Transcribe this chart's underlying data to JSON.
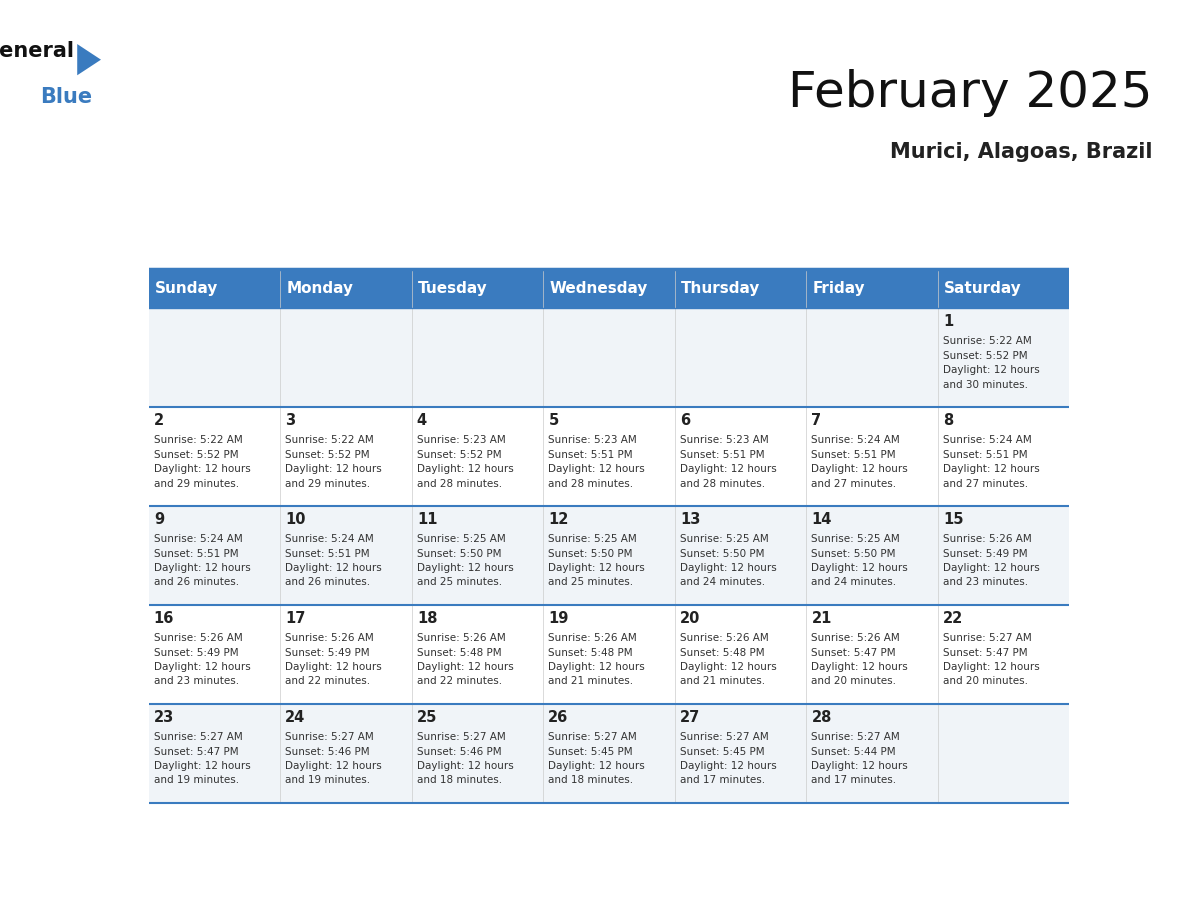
{
  "title": "February 2025",
  "subtitle": "Murici, Alagoas, Brazil",
  "header_bg_color": "#3a7bbf",
  "header_text_color": "#ffffff",
  "cell_bg_color_light": "#f0f4f8",
  "cell_bg_color_white": "#ffffff",
  "line_color": "#3a7bbf",
  "days_of_week": [
    "Sunday",
    "Monday",
    "Tuesday",
    "Wednesday",
    "Thursday",
    "Friday",
    "Saturday"
  ],
  "weeks": [
    [
      {
        "day": null,
        "info": null
      },
      {
        "day": null,
        "info": null
      },
      {
        "day": null,
        "info": null
      },
      {
        "day": null,
        "info": null
      },
      {
        "day": null,
        "info": null
      },
      {
        "day": null,
        "info": null
      },
      {
        "day": 1,
        "info": "Sunrise: 5:22 AM\nSunset: 5:52 PM\nDaylight: 12 hours\nand 30 minutes."
      }
    ],
    [
      {
        "day": 2,
        "info": "Sunrise: 5:22 AM\nSunset: 5:52 PM\nDaylight: 12 hours\nand 29 minutes."
      },
      {
        "day": 3,
        "info": "Sunrise: 5:22 AM\nSunset: 5:52 PM\nDaylight: 12 hours\nand 29 minutes."
      },
      {
        "day": 4,
        "info": "Sunrise: 5:23 AM\nSunset: 5:52 PM\nDaylight: 12 hours\nand 28 minutes."
      },
      {
        "day": 5,
        "info": "Sunrise: 5:23 AM\nSunset: 5:51 PM\nDaylight: 12 hours\nand 28 minutes."
      },
      {
        "day": 6,
        "info": "Sunrise: 5:23 AM\nSunset: 5:51 PM\nDaylight: 12 hours\nand 28 minutes."
      },
      {
        "day": 7,
        "info": "Sunrise: 5:24 AM\nSunset: 5:51 PM\nDaylight: 12 hours\nand 27 minutes."
      },
      {
        "day": 8,
        "info": "Sunrise: 5:24 AM\nSunset: 5:51 PM\nDaylight: 12 hours\nand 27 minutes."
      }
    ],
    [
      {
        "day": 9,
        "info": "Sunrise: 5:24 AM\nSunset: 5:51 PM\nDaylight: 12 hours\nand 26 minutes."
      },
      {
        "day": 10,
        "info": "Sunrise: 5:24 AM\nSunset: 5:51 PM\nDaylight: 12 hours\nand 26 minutes."
      },
      {
        "day": 11,
        "info": "Sunrise: 5:25 AM\nSunset: 5:50 PM\nDaylight: 12 hours\nand 25 minutes."
      },
      {
        "day": 12,
        "info": "Sunrise: 5:25 AM\nSunset: 5:50 PM\nDaylight: 12 hours\nand 25 minutes."
      },
      {
        "day": 13,
        "info": "Sunrise: 5:25 AM\nSunset: 5:50 PM\nDaylight: 12 hours\nand 24 minutes."
      },
      {
        "day": 14,
        "info": "Sunrise: 5:25 AM\nSunset: 5:50 PM\nDaylight: 12 hours\nand 24 minutes."
      },
      {
        "day": 15,
        "info": "Sunrise: 5:26 AM\nSunset: 5:49 PM\nDaylight: 12 hours\nand 23 minutes."
      }
    ],
    [
      {
        "day": 16,
        "info": "Sunrise: 5:26 AM\nSunset: 5:49 PM\nDaylight: 12 hours\nand 23 minutes."
      },
      {
        "day": 17,
        "info": "Sunrise: 5:26 AM\nSunset: 5:49 PM\nDaylight: 12 hours\nand 22 minutes."
      },
      {
        "day": 18,
        "info": "Sunrise: 5:26 AM\nSunset: 5:48 PM\nDaylight: 12 hours\nand 22 minutes."
      },
      {
        "day": 19,
        "info": "Sunrise: 5:26 AM\nSunset: 5:48 PM\nDaylight: 12 hours\nand 21 minutes."
      },
      {
        "day": 20,
        "info": "Sunrise: 5:26 AM\nSunset: 5:48 PM\nDaylight: 12 hours\nand 21 minutes."
      },
      {
        "day": 21,
        "info": "Sunrise: 5:26 AM\nSunset: 5:47 PM\nDaylight: 12 hours\nand 20 minutes."
      },
      {
        "day": 22,
        "info": "Sunrise: 5:27 AM\nSunset: 5:47 PM\nDaylight: 12 hours\nand 20 minutes."
      }
    ],
    [
      {
        "day": 23,
        "info": "Sunrise: 5:27 AM\nSunset: 5:47 PM\nDaylight: 12 hours\nand 19 minutes."
      },
      {
        "day": 24,
        "info": "Sunrise: 5:27 AM\nSunset: 5:46 PM\nDaylight: 12 hours\nand 19 minutes."
      },
      {
        "day": 25,
        "info": "Sunrise: 5:27 AM\nSunset: 5:46 PM\nDaylight: 12 hours\nand 18 minutes."
      },
      {
        "day": 26,
        "info": "Sunrise: 5:27 AM\nSunset: 5:45 PM\nDaylight: 12 hours\nand 18 minutes."
      },
      {
        "day": 27,
        "info": "Sunrise: 5:27 AM\nSunset: 5:45 PM\nDaylight: 12 hours\nand 17 minutes."
      },
      {
        "day": 28,
        "info": "Sunrise: 5:27 AM\nSunset: 5:44 PM\nDaylight: 12 hours\nand 17 minutes."
      },
      {
        "day": null,
        "info": null
      }
    ]
  ]
}
